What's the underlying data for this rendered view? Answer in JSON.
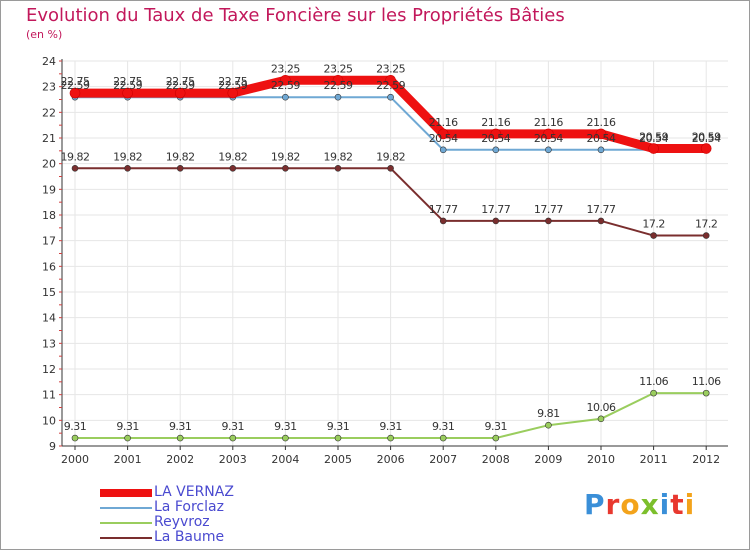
{
  "title": "Evolution du Taux de Taxe Foncière sur les Propriétés Bâties",
  "subtitle": "(en %)",
  "logo": {
    "text": "Proxiti",
    "colors": [
      "#3a8fd8",
      "#e8382f",
      "#f3a31b",
      "#7cbf2c",
      "#3a8fd8",
      "#e8382f",
      "#f3a31b"
    ]
  },
  "chart_data": {
    "type": "line",
    "title": "Evolution du Taux de Taxe Foncière sur les Propriétés Bâties",
    "ylabel": "(en %)",
    "xlabel": "",
    "ylim": [
      9,
      24
    ],
    "yticks": [
      9,
      10,
      11,
      12,
      13,
      14,
      15,
      16,
      17,
      18,
      19,
      20,
      21,
      22,
      23,
      24
    ],
    "categories": [
      "2000",
      "2001",
      "2002",
      "2003",
      "2004",
      "2005",
      "2006",
      "2007",
      "2008",
      "2009",
      "2010",
      "2011",
      "2012"
    ],
    "series": [
      {
        "name": "LA VERNAZ",
        "color": "#ee1111",
        "values": [
          22.75,
          22.75,
          22.75,
          22.75,
          23.25,
          23.25,
          23.25,
          21.16,
          21.16,
          21.16,
          21.16,
          20.59,
          20.59
        ],
        "labels": [
          "22.75",
          "22.75",
          "22.75",
          "22.75",
          "23.25",
          "23.25",
          "23.25",
          "21.16",
          "21.16",
          "21.16",
          "21.16",
          "20.59",
          "20.59"
        ]
      },
      {
        "name": "La Forclaz",
        "color": "#6fa8d4",
        "values": [
          22.59,
          22.59,
          22.59,
          22.59,
          22.59,
          22.59,
          22.59,
          20.54,
          20.54,
          20.54,
          20.54,
          20.54,
          20.54
        ],
        "labels": [
          "22.59",
          "22.59",
          "22.59",
          "22.59",
          "22.59",
          "22.59",
          "22.59",
          "20.54",
          "20.54",
          "20.54",
          "20.54",
          "20.54",
          "20.54"
        ]
      },
      {
        "name": "Reyvroz",
        "color": "#9acd5e",
        "values": [
          9.31,
          9.31,
          9.31,
          9.31,
          9.31,
          9.31,
          9.31,
          9.31,
          9.31,
          9.81,
          10.06,
          11.06,
          11.06
        ],
        "labels": [
          "9.31",
          "9.31",
          "9.31",
          "9.31",
          "9.31",
          "9.31",
          "9.31",
          "9.31",
          "9.31",
          "9.81",
          "10.06",
          "11.06",
          "11.06"
        ]
      },
      {
        "name": "La Baume",
        "color": "#7a2e2e",
        "values": [
          19.82,
          19.82,
          19.82,
          19.82,
          19.82,
          19.82,
          19.82,
          17.77,
          17.77,
          17.77,
          17.77,
          17.2,
          17.2
        ],
        "labels": [
          "19.82",
          "19.82",
          "19.82",
          "19.82",
          "19.82",
          "19.82",
          "19.82",
          "17.77",
          "17.77",
          "17.77",
          "17.77",
          "17.2",
          "17.2"
        ]
      }
    ]
  }
}
